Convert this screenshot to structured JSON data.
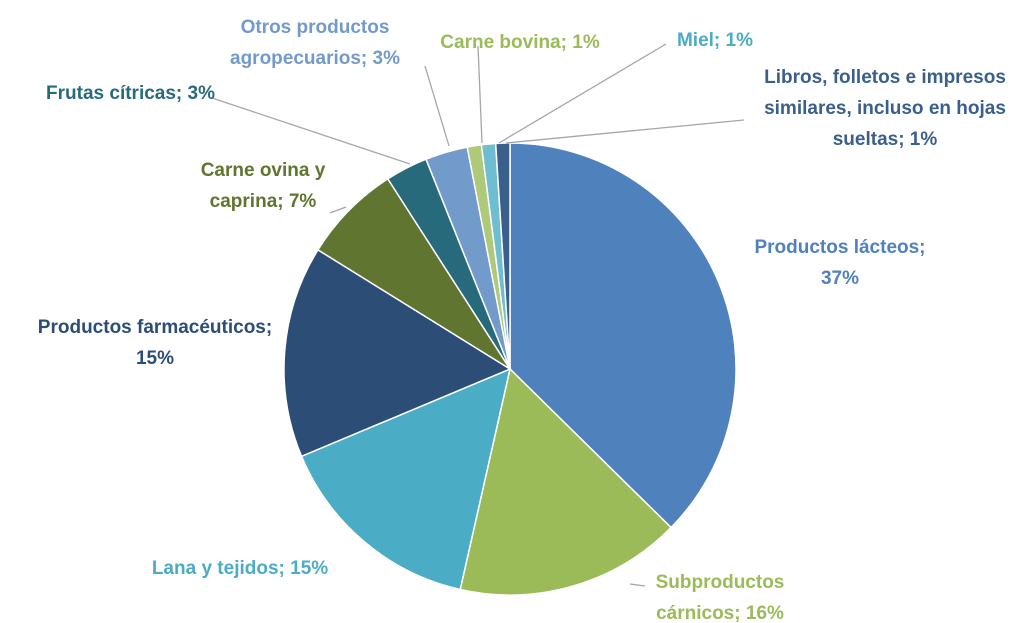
{
  "chart_data": {
    "type": "pie",
    "categories": [
      "Productos lácteos",
      "Subproductos cárnicos",
      "Lana y tejidos",
      "Productos farmacéuticos",
      "Carne ovina y caprina",
      "Frutas cítricas",
      "Otros productos agropecuarios",
      "Carne bovina",
      "Miel",
      "Libros, folletos e impresos similares, incluso en hojas sueltas"
    ],
    "values": [
      37,
      16,
      15,
      15,
      7,
      3,
      3,
      1,
      1,
      1
    ],
    "value_labels": [
      "Productos lácteos; 37%",
      "Subproductos cárnicos; 16%",
      "Lana y tejidos; 15%",
      "Productos farmacéuticos; 15%",
      "Carne ovina y caprina; 7%",
      "Frutas cítricas; 3%",
      "Otros productos agropecuarios; 3%",
      "Carne bovina; 1%",
      "Miel; 1%",
      "Libros, folletos e impresos similares, incluso en hojas sueltas; 1%"
    ],
    "colors": [
      "#4f81bd",
      "#9bbb59",
      "#4bacc6",
      "#2c4d75",
      "#5f7530",
      "#276a7c",
      "#729aca",
      "#afc97a",
      "#6fbdd1",
      "#3a5f8c"
    ],
    "label_colors": [
      "#4f81bd",
      "#9bbb59",
      "#4bacc6",
      "#2c4d75",
      "#5f7530",
      "#276a7c",
      "#729aca",
      "#9bbb59",
      "#4bacc6",
      "#3a5f8c"
    ]
  }
}
